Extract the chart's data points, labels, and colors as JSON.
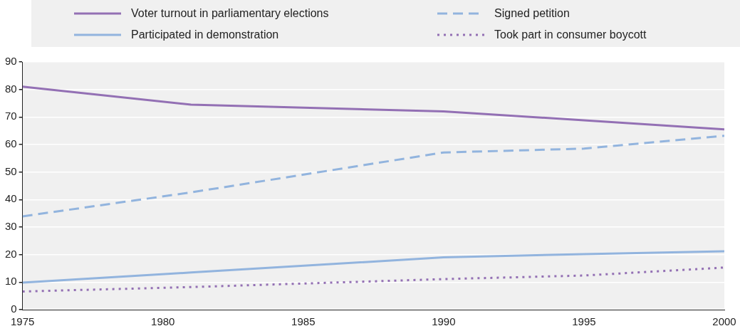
{
  "chart_data": {
    "type": "line",
    "legend": "top",
    "grid": "y",
    "xlim": [
      1975,
      2000
    ],
    "xticks": [
      1975,
      1980,
      1985,
      1990,
      1995,
      2000
    ],
    "ylim": [
      0,
      90
    ],
    "yticks": [
      0,
      10,
      20,
      30,
      40,
      50,
      60,
      70,
      80,
      90
    ],
    "series": [
      {
        "name": "Voter turnout in parliamentary elections",
        "color": "#9370b4",
        "line_style": "solid",
        "x": [
          1975,
          1981,
          1990,
          1995,
          2000
        ],
        "values": [
          81,
          74.5,
          72,
          68.8,
          65.5
        ]
      },
      {
        "name": "Signed petition",
        "color": "#92b4de",
        "line_style": "dashed",
        "x": [
          1975,
          1981,
          1990,
          1995,
          2000
        ],
        "values": [
          33.9,
          42.6,
          57.1,
          58.5,
          63.2
        ]
      },
      {
        "name": "Participated in demonstration",
        "color": "#92b4de",
        "line_style": "solid",
        "x": [
          1975,
          1981,
          1990,
          1995,
          2000
        ],
        "values": [
          9.8,
          13.5,
          19,
          20.2,
          21.2
        ]
      },
      {
        "name": "Took part in consumer boycott",
        "color": "#9370b4",
        "line_style": "dotted",
        "x": [
          1975,
          1981,
          1990,
          1995,
          2000
        ],
        "values": [
          6.6,
          8.2,
          11.1,
          12.4,
          15.3
        ]
      }
    ]
  }
}
